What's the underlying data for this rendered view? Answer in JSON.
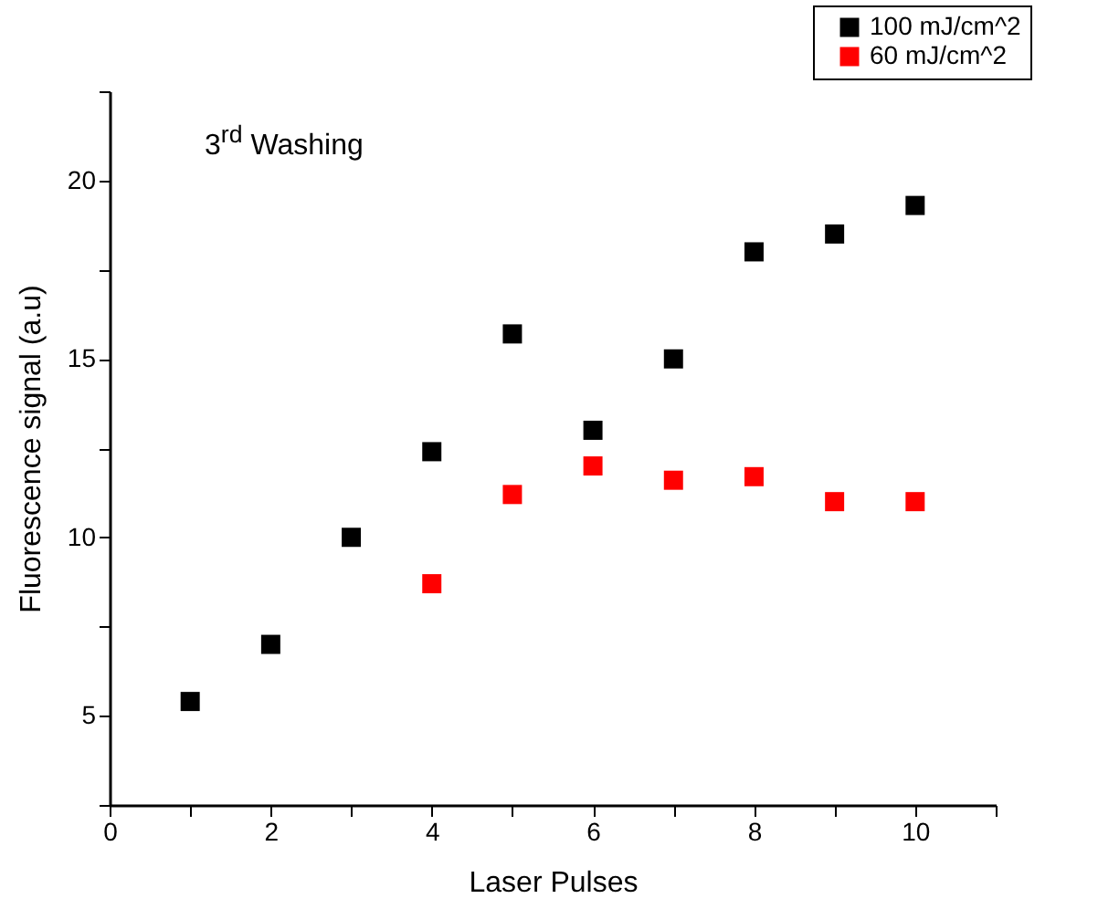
{
  "chart_data": {
    "type": "scatter",
    "xlabel": "Laser Pulses",
    "ylabel": "Fluorescence signal (a.u)",
    "annotations": [
      "3$^{rd}$ Washing"
    ],
    "x": [
      1,
      2,
      3,
      4,
      5,
      6,
      7,
      8,
      9,
      10
    ],
    "series": [
      {
        "name": "100 mJ/cm^2",
        "color": "#000000",
        "values": [
          5.4,
          7,
          10,
          12.4,
          15.7,
          13,
          15,
          18,
          18.5,
          19.3
        ]
      },
      {
        "name": "60 mJ/cm^2",
        "color": "#ff0000",
        "values": [
          null,
          null,
          null,
          8.7,
          11.2,
          12,
          11.6,
          11.7,
          11,
          11
        ]
      }
    ],
    "xlim": [
      0,
      11
    ],
    "xticks": [
      0,
      {
        "value": 1,
        "label": null
      },
      2,
      {
        "value": 3,
        "label": null
      },
      4,
      {
        "value": 5,
        "label": null
      },
      6,
      {
        "value": 7,
        "label": null
      },
      8,
      {
        "value": 9,
        "label": null
      },
      10,
      {
        "value": 11,
        "label": null
      }
    ],
    "ylim": [
      2.5,
      22.5
    ],
    "yticks": [
      {
        "value": 2.5,
        "label": null
      },
      5,
      {
        "value": 7.5,
        "label": null
      },
      10,
      {
        "value": 12.5,
        "label": null
      },
      15,
      {
        "value": 17.5,
        "label": null
      },
      20,
      {
        "value": 22.5,
        "label": null
      }
    ],
    "marker": "square",
    "grid": false,
    "legend": "top right"
  }
}
